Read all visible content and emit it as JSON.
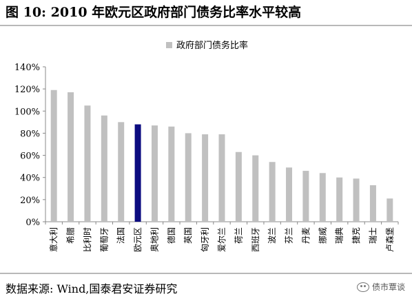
{
  "figure": {
    "title": "图 10:  2010 年欧元区政府部门债务比率水平较高"
  },
  "source": {
    "text": "数据来源:  Wind,国泰君安证券研究",
    "watermark": "债市覃谈",
    "watermark_icon": "wechat-icon"
  },
  "colors": {
    "bar": "#c0c0c0",
    "highlight": "#0c0c80",
    "axis": "#888888"
  },
  "chart_data": {
    "type": "bar",
    "title": "",
    "xlabel": "",
    "ylabel": "",
    "ylim": [
      0,
      140
    ],
    "y_ticks": [
      "0%",
      "20%",
      "40%",
      "60%",
      "80%",
      "100%",
      "120%",
      "140%"
    ],
    "y_tick_values": [
      0,
      20,
      40,
      60,
      80,
      100,
      120,
      140
    ],
    "legend": {
      "position": "top-center",
      "entries": [
        "政府部门债务比率"
      ]
    },
    "grid": false,
    "categories": [
      "意大利",
      "希腊",
      "比利时",
      "葡萄牙",
      "法国",
      "欧元区",
      "奥地利",
      "德国",
      "英国",
      "匈牙利",
      "爱尔兰",
      "荷兰",
      "西班牙",
      "波兰",
      "芬兰",
      "丹麦",
      "挪威",
      "瑞典",
      "捷克",
      "瑞士",
      "卢森堡"
    ],
    "series": [
      {
        "name": "政府部门债务比率",
        "values": [
          119,
          117,
          105,
          96,
          90,
          88,
          87,
          86,
          80,
          79,
          79,
          63,
          60,
          54,
          49,
          46,
          44,
          40,
          39,
          33,
          21
        ],
        "highlight_category": "欧元区"
      }
    ]
  }
}
